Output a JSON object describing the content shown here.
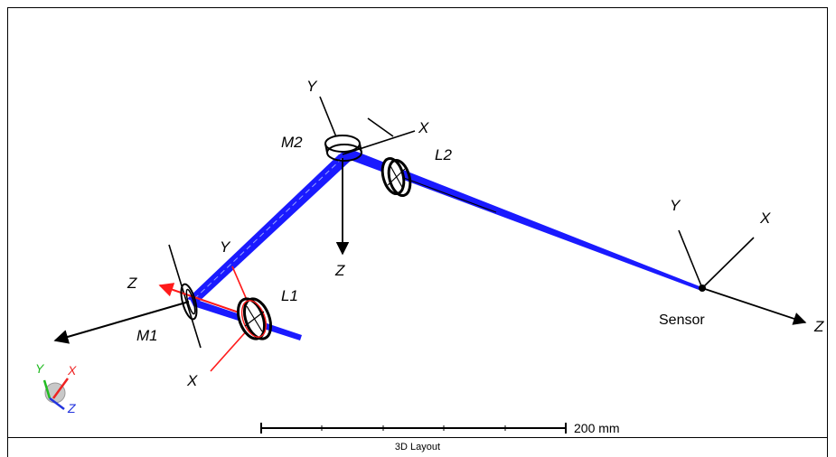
{
  "view": {
    "caption": "3D Layout",
    "scale_bar_label": "200 mm"
  },
  "components": {
    "m1": "M1",
    "m2": "M2",
    "l1": "L1",
    "l2": "L2",
    "sensor": "Sensor"
  },
  "axes": {
    "x": "X",
    "y": "Y",
    "z": "Z"
  },
  "colors": {
    "beam": "#1a1aff",
    "axis_red": "#ff1a1a",
    "axis_black": "#000000",
    "triad_green": "#22bb22",
    "triad_red": "#ee2222",
    "triad_blue": "#2233dd"
  },
  "triad": {
    "x": "X",
    "y": "Y",
    "z": "Z"
  }
}
